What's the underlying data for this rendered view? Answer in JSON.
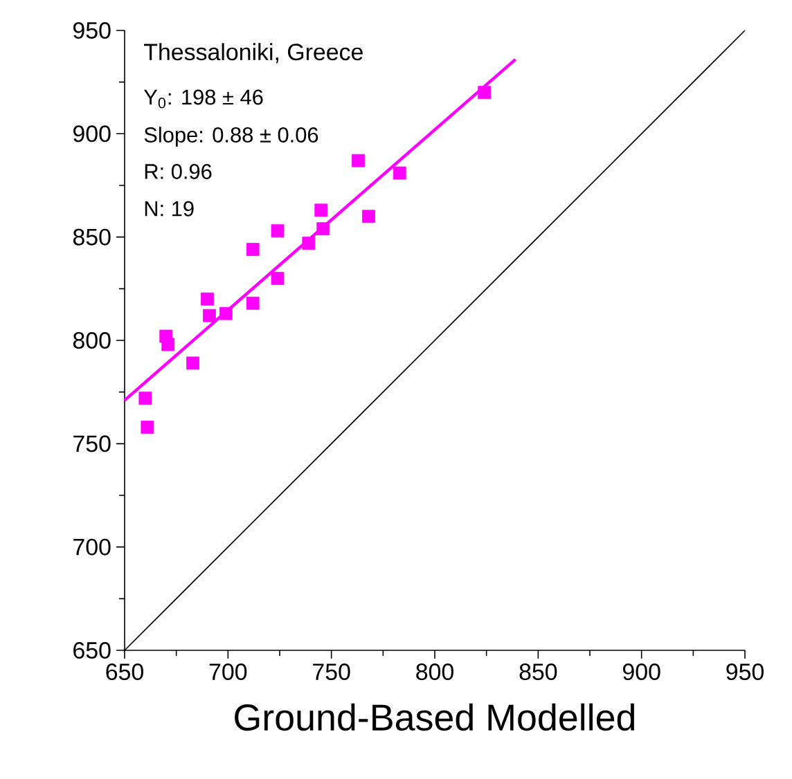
{
  "chart_data": {
    "type": "scatter",
    "xlabel": "Ground-Based Modelled",
    "annotations": [
      "Thessaloniki, Greece",
      "Y$_{0}$: 198 ± 46",
      "Slope: 0.88 ± 0.06",
      "R: 0.96",
      "N: 19"
    ],
    "xlim": [
      650,
      950
    ],
    "ylim": [
      650,
      950
    ],
    "xticks": [
      650,
      700,
      750,
      800,
      850,
      900,
      950
    ],
    "yticks": [
      650,
      700,
      750,
      800,
      850,
      900,
      950
    ],
    "grid": false,
    "series": [
      {
        "color": "#ff00ff",
        "marker": "square",
        "x": [
          660,
          661,
          670,
          671,
          683,
          690,
          691,
          699,
          712,
          712,
          724,
          724,
          739,
          745,
          746,
          763,
          768,
          783,
          824
        ],
        "values": [
          772,
          758,
          802,
          798,
          789,
          820,
          812,
          813,
          818,
          844,
          853,
          830,
          847,
          863,
          854,
          887,
          860,
          881,
          920
        ]
      },
      {
        "type": "line",
        "color": "#ff00ff",
        "marker": "none",
        "x": [
          650,
          839
        ],
        "values": [
          771,
          936
        ]
      },
      {
        "type": "line",
        "color": "#000000",
        "marker": "none",
        "x": [
          650,
          950
        ],
        "values": [
          650,
          950
        ]
      }
    ]
  }
}
